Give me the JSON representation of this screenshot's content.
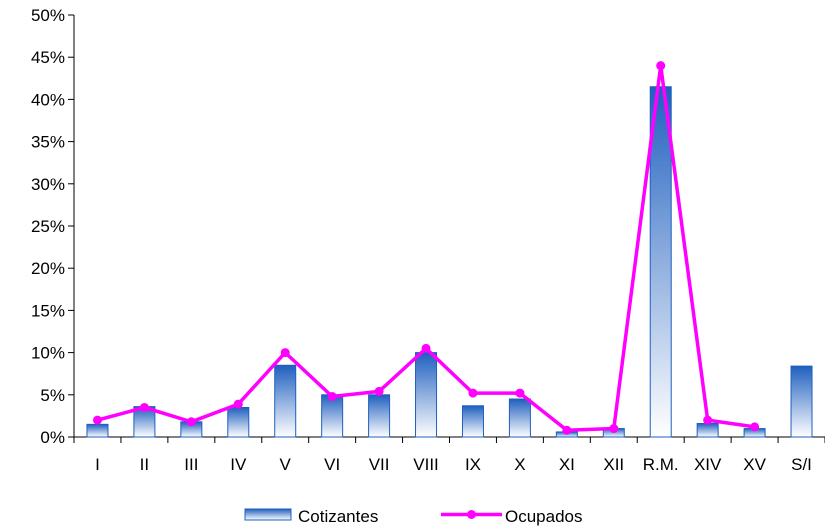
{
  "chart_data": {
    "type": "bar",
    "categories": [
      "I",
      "II",
      "III",
      "IV",
      "V",
      "VI",
      "VII",
      "VIII",
      "IX",
      "X",
      "XI",
      "XII",
      "R.M.",
      "XIV",
      "XV",
      "S/I"
    ],
    "series": [
      {
        "name": "Cotizantes",
        "type": "bar",
        "color": "#1f5fbf",
        "values": [
          1.5,
          3.6,
          1.8,
          3.5,
          8.5,
          5.0,
          5.0,
          10.0,
          3.7,
          4.5,
          0.6,
          1.0,
          41.5,
          1.6,
          1.0,
          8.4
        ]
      },
      {
        "name": "Ocupados",
        "type": "line",
        "color": "#ff00ff",
        "values": [
          2.0,
          3.5,
          1.8,
          3.9,
          10.0,
          4.8,
          5.4,
          10.5,
          5.2,
          5.2,
          0.8,
          1.0,
          44.0,
          2.0,
          1.2,
          null
        ]
      }
    ],
    "yticks": [
      "0%",
      "5%",
      "10%",
      "15%",
      "20%",
      "25%",
      "30%",
      "35%",
      "40%",
      "45%",
      "50%"
    ],
    "ylim": [
      0,
      50
    ],
    "title": "",
    "xlabel": "",
    "ylabel": "",
    "grid": false,
    "legend": "bottom"
  }
}
